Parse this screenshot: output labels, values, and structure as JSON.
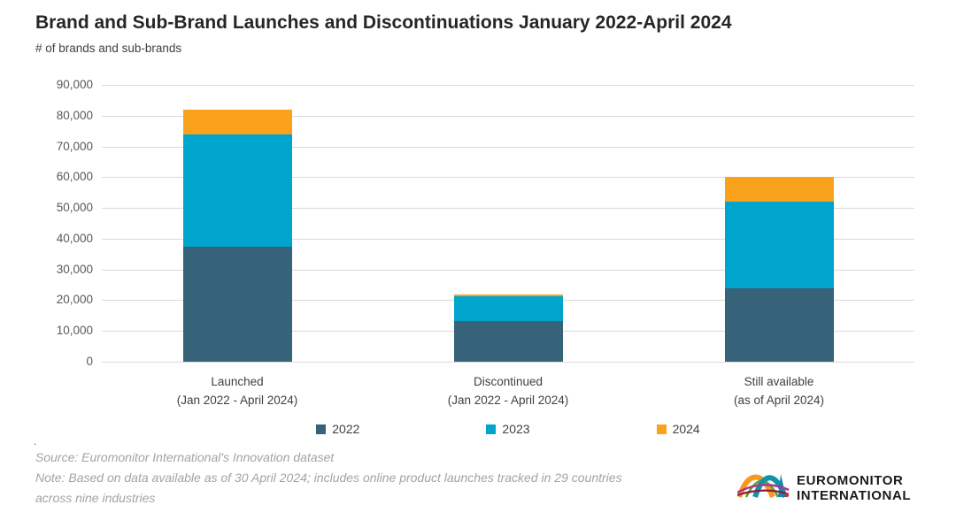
{
  "title": "Brand and Sub-Brand Launches and Discontinuations January 2022-April 2024",
  "subtitle": "# of brands and sub-brands",
  "chart_data": {
    "type": "bar",
    "stacked": true,
    "title": "Brand and Sub-Brand Launches and Discontinuations January 2022-April 2024",
    "ylabel": "# of brands and sub-brands",
    "xlabel": "",
    "categories": [
      {
        "line1": "Launched",
        "line2": "(Jan 2022 - April 2024)"
      },
      {
        "line1": "Discontinued",
        "line2": "(Jan 2022 - April 2024)"
      },
      {
        "line1": "Still available",
        "line2": "(as of April 2024)"
      }
    ],
    "series": [
      {
        "name": "2022",
        "color": "#366379",
        "values": [
          37500,
          13200,
          24000
        ]
      },
      {
        "name": "2023",
        "color": "#00a5ce",
        "values": [
          36500,
          8200,
          28000
        ]
      },
      {
        "name": "2024",
        "color": "#faa21b",
        "values": [
          8000,
          600,
          8000
        ]
      }
    ],
    "stack_totals": [
      82000,
      22000,
      60000
    ],
    "ylim": [
      0,
      90000
    ],
    "ytick_step": 10000,
    "grid": true,
    "gridline_color": "#d9d9d9",
    "legend_position": "bottom"
  },
  "footer": {
    "dot": ".",
    "source": "Source: Euromonitor International's Innovation dataset",
    "note": "Note: Based on data available as of 30 April 2024; includes online product launches tracked in 29 countries across nine industries"
  },
  "logo": {
    "line1": "EUROMONITOR",
    "line2": "INTERNATIONAL"
  }
}
